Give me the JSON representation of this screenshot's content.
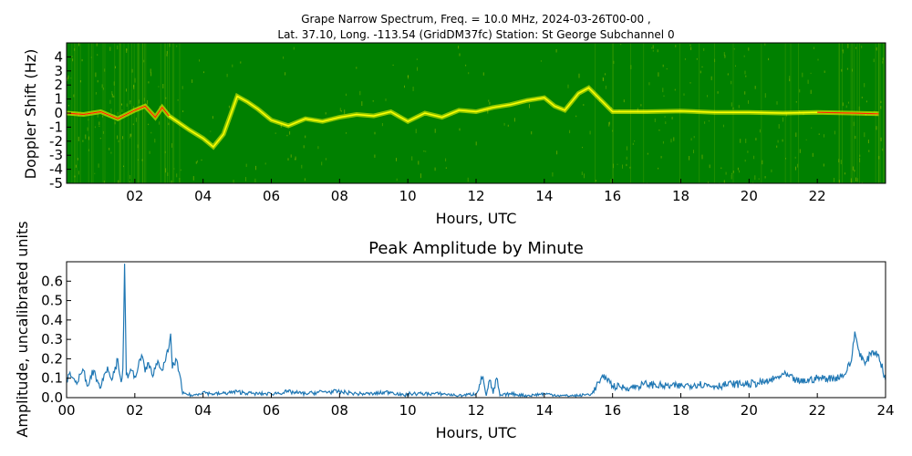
{
  "chart_data": [
    {
      "type": "heatmap",
      "title_line1": "Grape Narrow Spectrum, Freq. = 10.0 MHz, 2024-03-26T00-00 ,",
      "title_line2": "Lat.  37.10, Long. -113.54 (GridDM37fc) Station: St George Subchannel 0",
      "xlabel": "Hours, UTC",
      "ylabel": "Doppler Shift (Hz)",
      "xlim": [
        0,
        24
      ],
      "ylim": [
        -5,
        5
      ],
      "xticks": [
        2,
        4,
        6,
        8,
        10,
        12,
        14,
        16,
        18,
        20,
        22
      ],
      "xtick_labels": [
        "02",
        "04",
        "06",
        "08",
        "10",
        "12",
        "14",
        "16",
        "18",
        "20",
        "22"
      ],
      "yticks": [
        -5,
        -4,
        -3,
        -2,
        -1,
        0,
        1,
        2,
        3,
        4
      ],
      "ytick_labels": [
        "-5",
        "-4",
        "-3",
        "-2",
        "-1",
        "0",
        "1",
        "2",
        "3",
        "4"
      ],
      "colors": {
        "background": "#008000",
        "trace": "#ffff00",
        "peak": "#ff2000"
      },
      "doppler_trace": {
        "hours": [
          0.0,
          0.5,
          1.0,
          1.5,
          2.0,
          2.3,
          2.6,
          2.8,
          3.0,
          3.3,
          3.6,
          4.0,
          4.3,
          4.6,
          5.0,
          5.3,
          5.6,
          6.0,
          6.5,
          7.0,
          7.5,
          8.0,
          8.5,
          9.0,
          9.5,
          10.0,
          10.5,
          11.0,
          11.5,
          12.0,
          12.5,
          13.0,
          13.5,
          14.0,
          14.3,
          14.6,
          15.0,
          15.3,
          16.0,
          17.0,
          18.0,
          19.0,
          20.0,
          21.0,
          22.0,
          23.0,
          23.8
        ],
        "doppler_hz": [
          0.0,
          -0.1,
          0.1,
          -0.4,
          0.2,
          0.5,
          -0.3,
          0.4,
          -0.2,
          -0.7,
          -1.2,
          -1.8,
          -2.4,
          -1.5,
          1.2,
          0.8,
          0.3,
          -0.5,
          -0.9,
          -0.4,
          -0.6,
          -0.3,
          -0.1,
          -0.2,
          0.1,
          -0.6,
          0.0,
          -0.3,
          0.2,
          0.1,
          0.4,
          0.6,
          0.9,
          1.1,
          0.5,
          0.2,
          1.4,
          1.8,
          0.1,
          0.1,
          0.15,
          0.05,
          0.05,
          0.0,
          0.05,
          0.0,
          -0.05
        ]
      }
    },
    {
      "type": "line",
      "title": "Peak Amplitude by Minute",
      "xlabel": "Hours, UTC",
      "ylabel": "Amplitude, uncalibrated units",
      "xlim": [
        0,
        24
      ],
      "ylim": [
        0,
        0.7
      ],
      "xticks": [
        0,
        2,
        4,
        6,
        8,
        10,
        12,
        14,
        16,
        18,
        20,
        22,
        24
      ],
      "xtick_labels": [
        "00",
        "02",
        "04",
        "06",
        "08",
        "10",
        "12",
        "14",
        "16",
        "18",
        "20",
        "22",
        "24"
      ],
      "yticks": [
        0,
        0.1,
        0.2,
        0.3,
        0.4,
        0.5,
        0.6
      ],
      "ytick_labels": [
        "0.0",
        "0.1",
        "0.2",
        "0.3",
        "0.4",
        "0.5",
        "0.6"
      ],
      "line_color": "#1f77b4",
      "series": [
        {
          "x": [
            0.0,
            0.1,
            0.2,
            0.3,
            0.4,
            0.5,
            0.6,
            0.7,
            0.8,
            0.9,
            1.0,
            1.1,
            1.2,
            1.3,
            1.4,
            1.5,
            1.6,
            1.65,
            1.7,
            1.75,
            1.8,
            1.9,
            2.0,
            2.1,
            2.2,
            2.3,
            2.4,
            2.5,
            2.6,
            2.7,
            2.8,
            2.9,
            3.0,
            3.05,
            3.1,
            3.2,
            3.3,
            3.4,
            3.5,
            3.7,
            4.0,
            4.2,
            4.5,
            5.0,
            5.5,
            6.0,
            6.5,
            7.0,
            7.5,
            8.0,
            8.5,
            9.0,
            9.5,
            9.9,
            10.0,
            10.5,
            11.0,
            11.5,
            12.0,
            12.2,
            12.3,
            12.4,
            12.5,
            12.6,
            12.7,
            13.0,
            13.5,
            14.0,
            14.5,
            15.0,
            15.4,
            15.6,
            15.8,
            16.0,
            16.5,
            17.0,
            17.5,
            18.0,
            18.5,
            19.0,
            19.5,
            20.0,
            20.5,
            20.8,
            21.0,
            21.5,
            22.0,
            22.5,
            22.8,
            23.0,
            23.1,
            23.2,
            23.4,
            23.6,
            23.8,
            24.0
          ],
          "y": [
            0.08,
            0.13,
            0.1,
            0.07,
            0.12,
            0.14,
            0.06,
            0.11,
            0.14,
            0.09,
            0.05,
            0.12,
            0.16,
            0.1,
            0.13,
            0.2,
            0.08,
            0.15,
            0.69,
            0.12,
            0.1,
            0.14,
            0.11,
            0.16,
            0.22,
            0.13,
            0.18,
            0.12,
            0.15,
            0.18,
            0.14,
            0.19,
            0.26,
            0.33,
            0.15,
            0.2,
            0.13,
            0.02,
            0.02,
            0.01,
            0.03,
            0.02,
            0.02,
            0.03,
            0.02,
            0.02,
            0.03,
            0.02,
            0.03,
            0.03,
            0.02,
            0.02,
            0.03,
            0.01,
            0.02,
            0.02,
            0.02,
            0.01,
            0.02,
            0.11,
            0.01,
            0.09,
            0.02,
            0.1,
            0.01,
            0.02,
            0.01,
            0.02,
            0.01,
            0.01,
            0.02,
            0.08,
            0.11,
            0.06,
            0.05,
            0.07,
            0.06,
            0.06,
            0.07,
            0.06,
            0.07,
            0.07,
            0.08,
            0.1,
            0.12,
            0.08,
            0.1,
            0.1,
            0.12,
            0.19,
            0.34,
            0.25,
            0.17,
            0.24,
            0.22,
            0.09
          ]
        }
      ]
    }
  ]
}
